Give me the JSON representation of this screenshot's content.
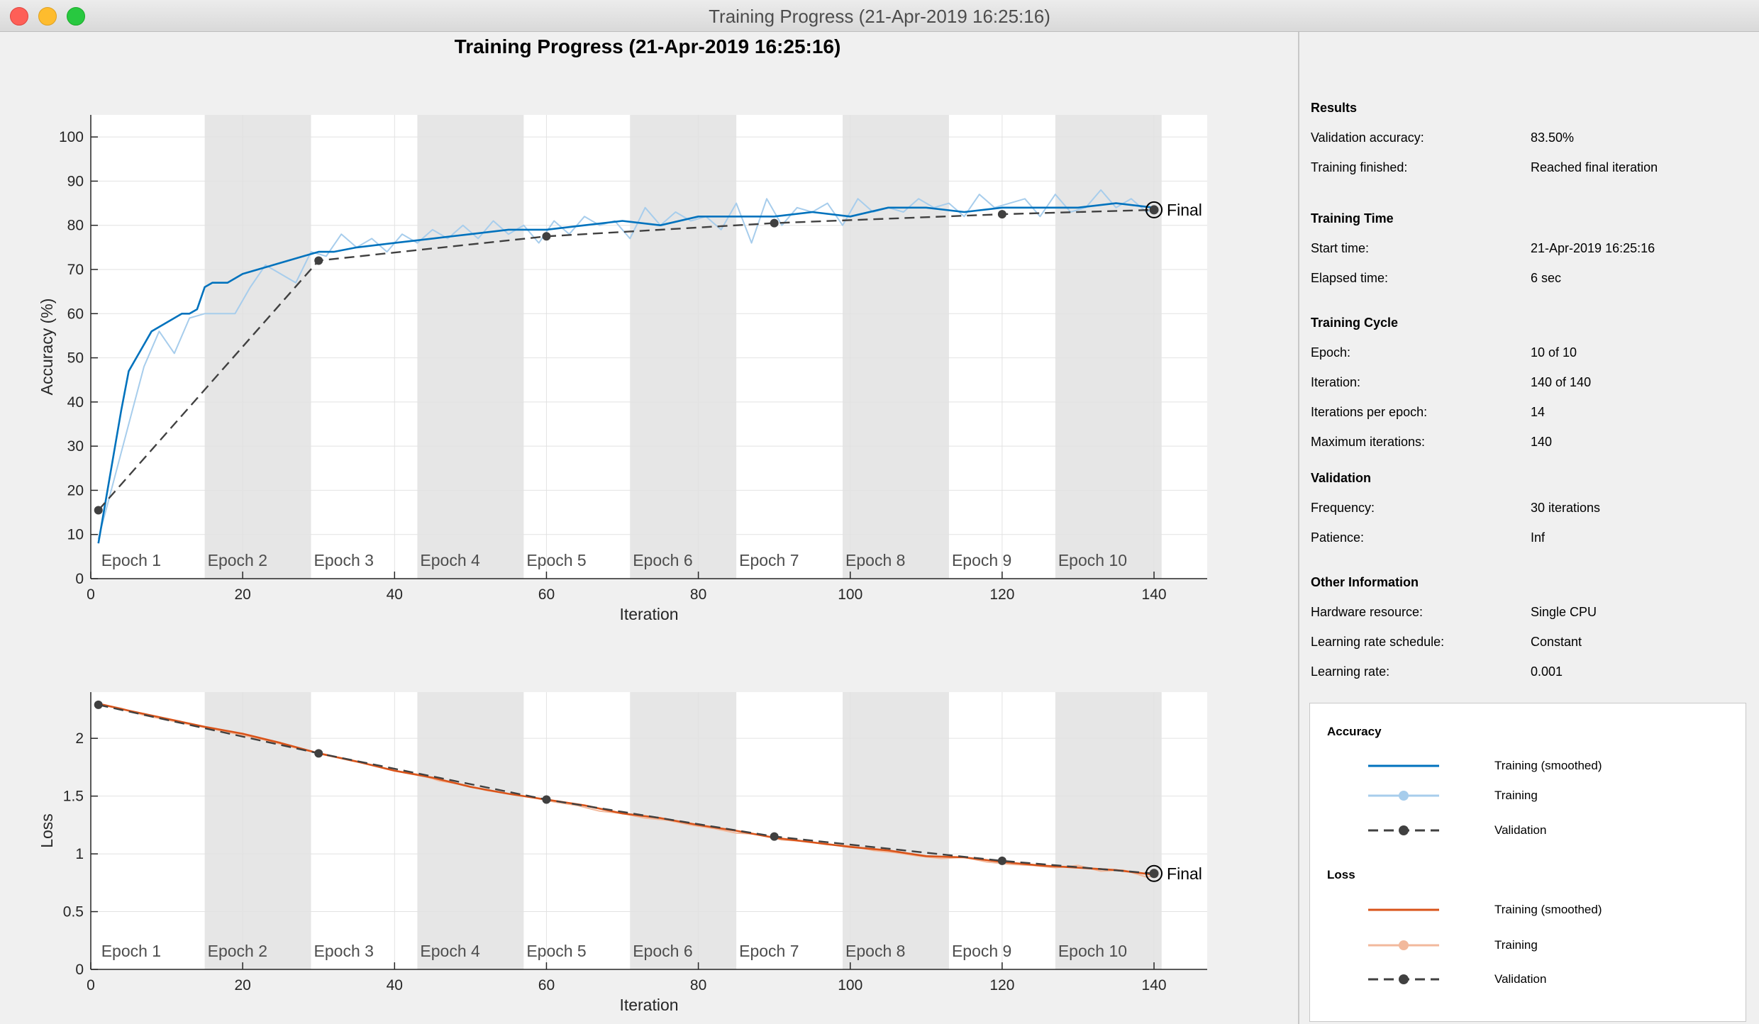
{
  "window": {
    "title": "Training Progress (21-Apr-2019 16:25:16)"
  },
  "figure": {
    "title": "Training Progress (21-Apr-2019 16:25:16)"
  },
  "colors": {
    "training_acc_smoothed": "#0072bd",
    "training_acc": "#a7cdec",
    "training_loss_smoothed": "#d95319",
    "training_loss": "#f2b99c",
    "validation": "#404040",
    "epoch_shade": "#e6e6e6",
    "grid": "#e2e2e2"
  },
  "info": {
    "sections": [
      {
        "heading": "Results",
        "rows": [
          {
            "key": "Validation accuracy:",
            "value": "83.50%"
          },
          {
            "key": "Training finished:",
            "value": "Reached final iteration"
          }
        ]
      },
      {
        "heading": "Training Time",
        "rows": [
          {
            "key": "Start time:",
            "value": "21-Apr-2019 16:25:16"
          },
          {
            "key": "Elapsed time:",
            "value": "6 sec"
          }
        ]
      },
      {
        "heading": "Training Cycle",
        "rows": [
          {
            "key": "Epoch:",
            "value": "10 of 10"
          },
          {
            "key": "Iteration:",
            "value": "140 of 140"
          },
          {
            "key": "Iterations per epoch:",
            "value": "14"
          },
          {
            "key": "Maximum iterations:",
            "value": "140"
          }
        ]
      },
      {
        "heading": "Validation",
        "rows": [
          {
            "key": "Frequency:",
            "value": "30 iterations"
          },
          {
            "key": "Patience:",
            "value": "Inf"
          }
        ]
      },
      {
        "heading": "Other Information",
        "rows": [
          {
            "key": "Hardware resource:",
            "value": "Single CPU"
          },
          {
            "key": "Learning rate schedule:",
            "value": "Constant"
          },
          {
            "key": "Learning rate:",
            "value": "0.001"
          }
        ]
      }
    ]
  },
  "legend": {
    "accuracy_heading": "Accuracy",
    "loss_heading": "Loss",
    "items": {
      "acc_smoothed": "Training (smoothed)",
      "acc_training": "Training",
      "acc_validation": "Validation",
      "loss_smoothed": "Training (smoothed)",
      "loss_training": "Training",
      "loss_validation": "Validation"
    }
  },
  "chart_data": [
    {
      "type": "line",
      "xlabel": "Iteration",
      "ylabel": "Accuracy (%)",
      "xlim": [
        0,
        147
      ],
      "ylim": [
        0,
        105
      ],
      "xticks": [
        0,
        20,
        40,
        60,
        80,
        100,
        120,
        140
      ],
      "yticks": [
        0,
        10,
        20,
        30,
        40,
        50,
        60,
        70,
        80,
        90,
        100
      ],
      "grid": true,
      "epochs": {
        "labels": [
          "Epoch 1",
          "Epoch 2",
          "Epoch 3",
          "Epoch 4",
          "Epoch 5",
          "Epoch 6",
          "Epoch 7",
          "Epoch 8",
          "Epoch 9",
          "Epoch 10"
        ],
        "iterations_per_epoch": 14
      },
      "final_label": "Final",
      "series": [
        {
          "name": "Training (smoothed)",
          "x": [
            1,
            2,
            3,
            4,
            5,
            6,
            7,
            8,
            9,
            10,
            11,
            12,
            13,
            14,
            15,
            16,
            17,
            18,
            19,
            20,
            22,
            24,
            26,
            28,
            30,
            32,
            35,
            40,
            45,
            50,
            55,
            60,
            65,
            70,
            75,
            80,
            85,
            90,
            95,
            100,
            105,
            110,
            115,
            120,
            125,
            130,
            135,
            140
          ],
          "y": [
            8,
            18,
            28,
            38,
            47,
            50,
            53,
            56,
            57,
            58,
            59,
            60,
            60,
            61,
            66,
            67,
            67,
            67,
            68,
            69,
            70,
            71,
            72,
            73,
            74,
            74,
            75,
            76,
            77,
            78,
            79,
            79,
            80,
            81,
            80,
            82,
            82,
            82,
            83,
            82,
            84,
            84,
            83,
            84,
            84,
            84,
            85,
            84
          ]
        },
        {
          "name": "Training",
          "x": [
            1,
            3,
            5,
            7,
            9,
            11,
            13,
            15,
            17,
            19,
            21,
            23,
            25,
            27,
            29,
            31,
            33,
            35,
            37,
            39,
            41,
            43,
            45,
            47,
            49,
            51,
            53,
            55,
            57,
            59,
            61,
            63,
            65,
            67,
            69,
            71,
            73,
            75,
            77,
            79,
            81,
            83,
            85,
            87,
            89,
            91,
            93,
            95,
            97,
            99,
            101,
            103,
            105,
            107,
            109,
            111,
            113,
            115,
            117,
            119,
            121,
            123,
            125,
            127,
            129,
            131,
            133,
            135,
            137,
            139,
            140
          ],
          "y": [
            9,
            22,
            35,
            48,
            56,
            51,
            59,
            60,
            60,
            60,
            66,
            71,
            69,
            67,
            74,
            73,
            78,
            75,
            77,
            74,
            78,
            76,
            79,
            77,
            80,
            77,
            81,
            78,
            80,
            76,
            81,
            78,
            82,
            80,
            81,
            77,
            84,
            80,
            83,
            81,
            82,
            79,
            85,
            76,
            86,
            80,
            84,
            83,
            85,
            80,
            86,
            83,
            84,
            83,
            86,
            84,
            85,
            82,
            87,
            84,
            85,
            86,
            82,
            87,
            83,
            84,
            88,
            84,
            86,
            83,
            84
          ]
        },
        {
          "name": "Validation",
          "x": [
            1,
            30,
            60,
            90,
            120,
            140
          ],
          "y": [
            15.5,
            72,
            77.5,
            80.5,
            82.5,
            83.5
          ]
        }
      ]
    },
    {
      "type": "line",
      "xlabel": "Iteration",
      "ylabel": "Loss",
      "xlim": [
        0,
        147
      ],
      "ylim": [
        0,
        2.4
      ],
      "xticks": [
        0,
        20,
        40,
        60,
        80,
        100,
        120,
        140
      ],
      "yticks": [
        0,
        0.5,
        1,
        1.5,
        2
      ],
      "grid": true,
      "epochs": {
        "labels": [
          "Epoch 1",
          "Epoch 2",
          "Epoch 3",
          "Epoch 4",
          "Epoch 5",
          "Epoch 6",
          "Epoch 7",
          "Epoch 8",
          "Epoch 9",
          "Epoch 10"
        ],
        "iterations_per_epoch": 14
      },
      "final_label": "Final",
      "series": [
        {
          "name": "Training (smoothed)",
          "x": [
            1,
            5,
            10,
            15,
            20,
            25,
            30,
            35,
            40,
            45,
            50,
            55,
            60,
            65,
            70,
            75,
            80,
            85,
            90,
            95,
            100,
            105,
            110,
            115,
            120,
            125,
            130,
            135,
            140
          ],
          "y": [
            2.3,
            2.24,
            2.17,
            2.1,
            2.04,
            1.96,
            1.87,
            1.8,
            1.72,
            1.66,
            1.58,
            1.52,
            1.47,
            1.42,
            1.35,
            1.31,
            1.25,
            1.2,
            1.14,
            1.1,
            1.06,
            1.03,
            0.98,
            0.97,
            0.93,
            0.9,
            0.88,
            0.86,
            0.82
          ]
        },
        {
          "name": "Training",
          "x": [
            1,
            4,
            7,
            10,
            13,
            16,
            19,
            22,
            25,
            28,
            31,
            34,
            37,
            40,
            43,
            46,
            49,
            52,
            55,
            58,
            61,
            64,
            67,
            70,
            73,
            76,
            79,
            82,
            85,
            88,
            91,
            94,
            97,
            100,
            103,
            106,
            109,
            112,
            115,
            118,
            121,
            124,
            127,
            130,
            133,
            136,
            139,
            140
          ],
          "y": [
            2.3,
            2.26,
            2.2,
            2.16,
            2.12,
            2.08,
            2.04,
            2.0,
            1.95,
            1.9,
            1.86,
            1.81,
            1.77,
            1.72,
            1.69,
            1.63,
            1.6,
            1.55,
            1.52,
            1.49,
            1.45,
            1.42,
            1.37,
            1.35,
            1.31,
            1.29,
            1.25,
            1.22,
            1.18,
            1.17,
            1.12,
            1.11,
            1.08,
            1.07,
            1.03,
            1.01,
            0.98,
            0.96,
            0.97,
            0.93,
            0.91,
            0.9,
            0.88,
            0.9,
            0.85,
            0.86,
            0.8,
            0.81
          ]
        },
        {
          "name": "Validation",
          "x": [
            1,
            30,
            60,
            90,
            120,
            140
          ],
          "y": [
            2.29,
            1.87,
            1.47,
            1.15,
            0.94,
            0.83
          ]
        }
      ]
    }
  ]
}
